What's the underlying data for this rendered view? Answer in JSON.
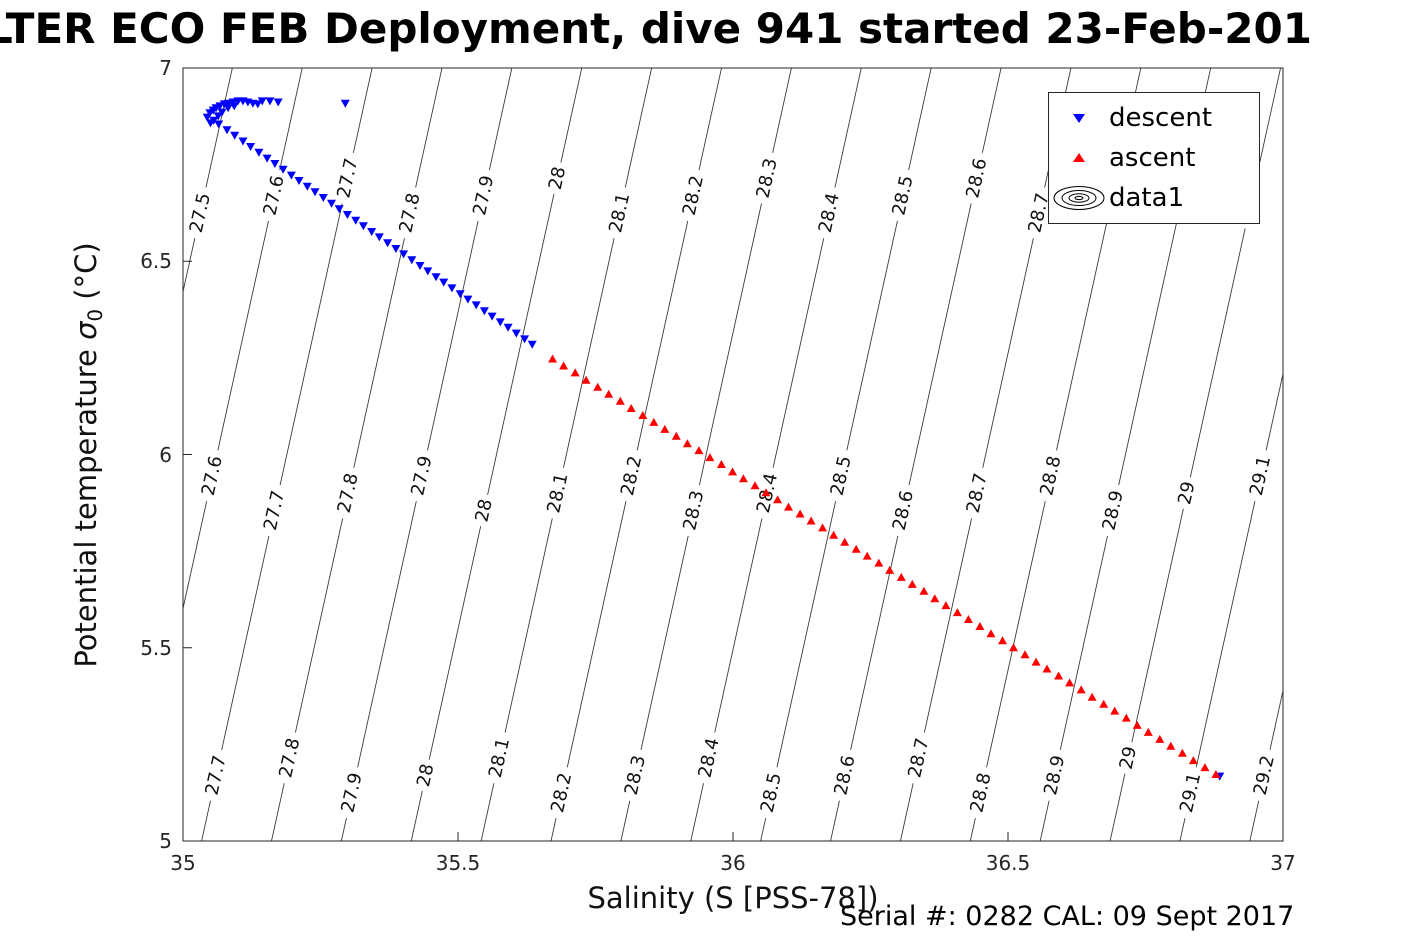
{
  "chart_data": {
    "type": "scatter",
    "title": "LTER ECO FEB Deployment, dive 941 started 23-Feb-201",
    "xlabel": "Salinity (S [PSS-78])",
    "ylabel": {
      "prefix": "Potential temperature ",
      "symbol": "σ",
      "subscript": "0",
      "suffix": " (°C)"
    },
    "xlim": [
      35,
      37
    ],
    "ylim": [
      5,
      7
    ],
    "x_ticks": [
      "35",
      "35.5",
      "36",
      "36.5",
      "37"
    ],
    "y_ticks": [
      "5",
      "5.5",
      "6",
      "6.5",
      "7"
    ],
    "grid": false,
    "legend": {
      "position": "northeast",
      "items": [
        {
          "label": "descent",
          "marker": "triangle-down",
          "color": "#0000FF"
        },
        {
          "label": "ascent",
          "marker": "triangle-up",
          "color": "#FF0000"
        },
        {
          "label": "data1",
          "marker": "contour-rings",
          "color": "#000000"
        }
      ]
    },
    "series": [
      {
        "name": "descent",
        "marker": "triangle-down",
        "color": "#0000FF",
        "points": [
          [
            35.044,
            6.873
          ],
          [
            35.049,
            6.884
          ],
          [
            35.055,
            6.891
          ],
          [
            35.06,
            6.897
          ],
          [
            35.067,
            6.902
          ],
          [
            35.075,
            6.907
          ],
          [
            35.082,
            6.909
          ],
          [
            35.091,
            6.912
          ],
          [
            35.1,
            6.915
          ],
          [
            35.109,
            6.915
          ],
          [
            35.118,
            6.912
          ],
          [
            35.127,
            6.909
          ],
          [
            35.136,
            6.907
          ],
          [
            35.144,
            6.915
          ],
          [
            35.158,
            6.915
          ],
          [
            35.173,
            6.912
          ],
          [
            35.295,
            6.909
          ],
          [
            35.093,
            6.902
          ],
          [
            35.082,
            6.897
          ],
          [
            35.071,
            6.886
          ],
          [
            35.064,
            6.876
          ],
          [
            35.056,
            6.865
          ],
          [
            35.05,
            6.858
          ],
          [
            35.065,
            6.855
          ],
          [
            35.08,
            6.84
          ],
          [
            35.094,
            6.826
          ],
          [
            35.109,
            6.811
          ],
          [
            35.123,
            6.797
          ],
          [
            35.138,
            6.782
          ],
          [
            35.153,
            6.767
          ],
          [
            35.167,
            6.753
          ],
          [
            35.182,
            6.738
          ],
          [
            35.197,
            6.723
          ],
          [
            35.211,
            6.709
          ],
          [
            35.226,
            6.694
          ],
          [
            35.24,
            6.68
          ],
          [
            35.255,
            6.665
          ],
          [
            35.27,
            6.65
          ],
          [
            35.284,
            6.636
          ],
          [
            35.299,
            6.621
          ],
          [
            35.314,
            6.606
          ],
          [
            35.328,
            6.592
          ],
          [
            35.343,
            6.577
          ],
          [
            35.357,
            6.563
          ],
          [
            35.372,
            6.548
          ],
          [
            35.387,
            6.533
          ],
          [
            35.401,
            6.519
          ],
          [
            35.416,
            6.504
          ],
          [
            35.431,
            6.489
          ],
          [
            35.445,
            6.475
          ],
          [
            35.46,
            6.46
          ],
          [
            35.474,
            6.446
          ],
          [
            35.489,
            6.431
          ],
          [
            35.504,
            6.416
          ],
          [
            35.518,
            6.402
          ],
          [
            35.533,
            6.387
          ],
          [
            35.548,
            6.372
          ],
          [
            35.562,
            6.358
          ],
          [
            35.577,
            6.343
          ],
          [
            35.591,
            6.329
          ],
          [
            35.606,
            6.314
          ],
          [
            35.621,
            6.299
          ],
          [
            35.635,
            6.285
          ],
          [
            36.885,
            5.168
          ]
        ]
      },
      {
        "name": "ascent",
        "marker": "triangle-up",
        "color": "#FF0000",
        "points": [
          [
            35.672,
            6.247
          ],
          [
            35.692,
            6.229
          ],
          [
            35.713,
            6.211
          ],
          [
            35.733,
            6.192
          ],
          [
            35.754,
            6.174
          ],
          [
            35.774,
            6.156
          ],
          [
            35.795,
            6.138
          ],
          [
            35.815,
            6.119
          ],
          [
            35.836,
            6.101
          ],
          [
            35.856,
            6.083
          ],
          [
            35.876,
            6.065
          ],
          [
            35.897,
            6.047
          ],
          [
            35.917,
            6.028
          ],
          [
            35.938,
            6.01
          ],
          [
            35.958,
            5.992
          ],
          [
            35.979,
            5.974
          ],
          [
            35.999,
            5.955
          ],
          [
            36.019,
            5.937
          ],
          [
            36.04,
            5.919
          ],
          [
            36.06,
            5.901
          ],
          [
            36.081,
            5.883
          ],
          [
            36.101,
            5.864
          ],
          [
            36.122,
            5.846
          ],
          [
            36.142,
            5.828
          ],
          [
            36.163,
            5.81
          ],
          [
            36.183,
            5.791
          ],
          [
            36.203,
            5.773
          ],
          [
            36.224,
            5.755
          ],
          [
            36.244,
            5.737
          ],
          [
            36.265,
            5.719
          ],
          [
            36.285,
            5.7
          ],
          [
            36.306,
            5.682
          ],
          [
            36.326,
            5.664
          ],
          [
            36.347,
            5.646
          ],
          [
            36.367,
            5.627
          ],
          [
            36.387,
            5.609
          ],
          [
            36.408,
            5.591
          ],
          [
            36.428,
            5.573
          ],
          [
            36.449,
            5.555
          ],
          [
            36.469,
            5.536
          ],
          [
            36.49,
            5.518
          ],
          [
            36.51,
            5.5
          ],
          [
            36.531,
            5.482
          ],
          [
            36.551,
            5.463
          ],
          [
            36.571,
            5.445
          ],
          [
            36.592,
            5.427
          ],
          [
            36.612,
            5.409
          ],
          [
            36.633,
            5.391
          ],
          [
            36.653,
            5.372
          ],
          [
            36.674,
            5.354
          ],
          [
            36.694,
            5.336
          ],
          [
            36.715,
            5.318
          ],
          [
            36.735,
            5.299
          ],
          [
            36.755,
            5.281
          ],
          [
            36.776,
            5.263
          ],
          [
            36.796,
            5.245
          ],
          [
            36.817,
            5.227
          ],
          [
            36.837,
            5.208
          ],
          [
            36.858,
            5.19
          ],
          [
            36.878,
            5.172
          ]
        ]
      }
    ],
    "contours": {
      "description": "isopycnal (sigma-0 density) contour lines labeled inline",
      "levels": [
        27.5,
        27.6,
        27.7,
        27.8,
        27.9,
        28,
        28.1,
        28.2,
        28.3,
        28.4,
        28.5,
        28.6,
        28.7,
        28.8,
        28.9,
        29,
        29.1,
        29.2
      ],
      "labels": [
        "27.5",
        "27.6",
        "27.7",
        "27.8",
        "27.9",
        "28",
        "28.1",
        "28.2",
        "28.3",
        "28.4",
        "28.5",
        "28.6",
        "28.7",
        "28.8",
        "28.9",
        "29",
        "29.1",
        "29.2"
      ],
      "model": {
        "S_ref": 35.415,
        "level_ref": 28,
        "dS_per_unit": 1.2706,
        "dS_per_degC": 0.155,
        "T_ref": 5
      },
      "label_T_rows": [
        6.67,
        5.9,
        5.17
      ]
    }
  },
  "footer": {
    "serial_text": "Serial #: 0282  CAL: 09 Sept 2017"
  }
}
